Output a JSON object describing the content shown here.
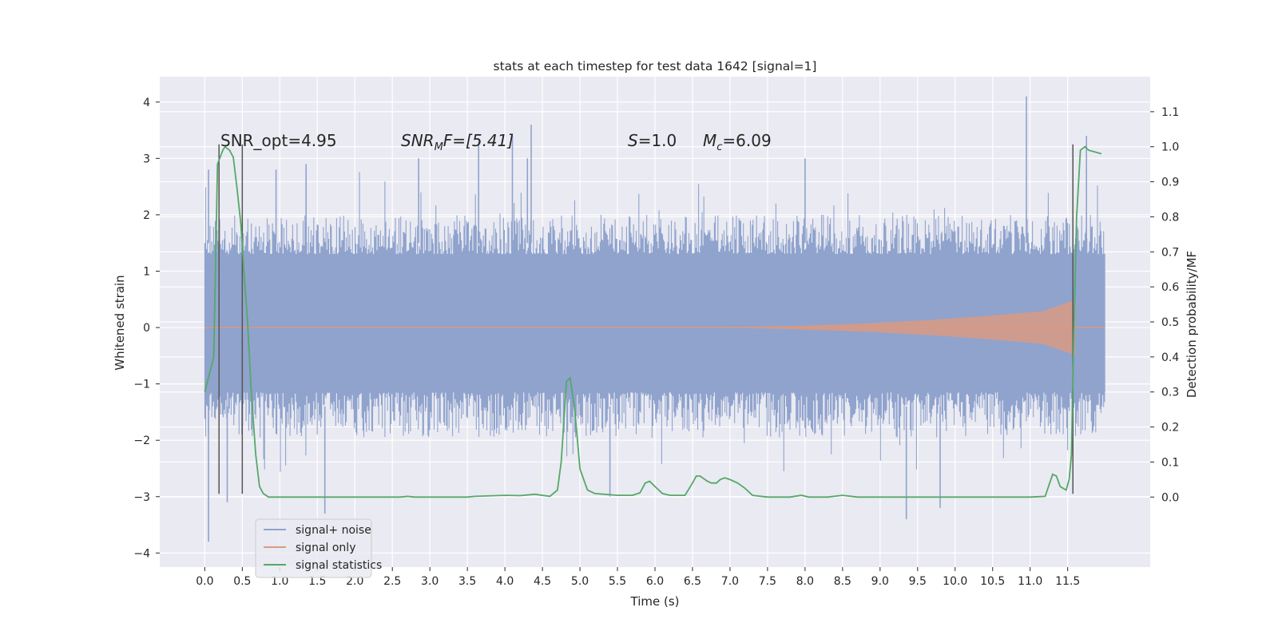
{
  "chart_data": {
    "type": "line",
    "title": "stats at each timestep for test data 1642 [signal=1]",
    "xlabel": "Time (s)",
    "ylabel": "Whitened strain",
    "ylabel_right": "Detection probability/MF",
    "xlim": [
      -0.6,
      12.6
    ],
    "ylim": [
      -4.25,
      4.45
    ],
    "ylim_right": [
      -0.2,
      1.2
    ],
    "x_ticks": [
      "0.0",
      "0.5",
      "1.0",
      "1.5",
      "2.0",
      "2.5",
      "3.0",
      "3.5",
      "4.0",
      "4.5",
      "5.0",
      "5.5",
      "6.0",
      "6.5",
      "7.0",
      "7.5",
      "8.0",
      "8.5",
      "9.0",
      "9.5",
      "10.0",
      "10.5",
      "11.0",
      "11.5"
    ],
    "y_ticks": [
      "4",
      "3",
      "2",
      "1",
      "0",
      "−1",
      "−2",
      "−3",
      "−4"
    ],
    "y_ticks_right": [
      "1.1",
      "1.0",
      "0.9",
      "0.8",
      "0.7",
      "0.6",
      "0.5",
      "0.4",
      "0.3",
      "0.2",
      "0.1",
      "0.0"
    ],
    "grid": true,
    "legend_position": "lower-left",
    "annotations": [
      {
        "id": "snr_opt",
        "text": "SNR_opt=4.95"
      },
      {
        "id": "snr_mf",
        "pre": "SNR",
        "sub": "M",
        "post": "F=[5.41]"
      },
      {
        "id": "s_value",
        "pre": "S",
        "post": "=1.0"
      },
      {
        "id": "mc_value",
        "pre": "M",
        "sub": "c",
        "post": "=6.09"
      }
    ],
    "series": [
      {
        "name": "signal+ noise",
        "color": "#8fa3cd",
        "description_envelope": {
          "t_start": 0.0,
          "t_end": 12.0,
          "typical_upper": 1.7,
          "typical_lower": -1.6,
          "peaks": [
            [
              0.05,
              2.8
            ],
            [
              0.95,
              2.8
            ],
            [
              1.35,
              2.9
            ],
            [
              2.85,
              3.0
            ],
            [
              3.65,
              3.3
            ],
            [
              4.1,
              3.4
            ],
            [
              4.35,
              3.6
            ],
            [
              4.3,
              3.0
            ],
            [
              8.0,
              3.0
            ],
            [
              10.95,
              4.1
            ],
            [
              11.75,
              3.4
            ]
          ],
          "troughs": [
            [
              0.05,
              -3.8
            ],
            [
              0.3,
              -3.1
            ],
            [
              1.6,
              -3.3
            ],
            [
              9.35,
              -3.4
            ],
            [
              9.8,
              -3.2
            ],
            [
              5.4,
              -3.0
            ]
          ]
        }
      },
      {
        "name": "signal only",
        "color": "#d99a84",
        "chirp": {
          "t_start": 6.0,
          "t_end": 11.62,
          "peak_amplitude": 0.5
        }
      },
      {
        "name": "signal statistics",
        "color": "#55a868",
        "axis": "right",
        "x": [
          0.0,
          0.12,
          0.17,
          0.24,
          0.27,
          0.33,
          0.38,
          0.43,
          0.48,
          0.52,
          0.57,
          0.62,
          0.68,
          0.73,
          0.78,
          0.85,
          1.0,
          2.0,
          2.6,
          2.7,
          2.8,
          3.5,
          3.6,
          4.0,
          4.2,
          4.4,
          4.6,
          4.7,
          4.75,
          4.82,
          4.87,
          4.93,
          5.0,
          5.1,
          5.2,
          5.5,
          5.7,
          5.8,
          5.87,
          5.93,
          6.0,
          6.1,
          6.2,
          6.4,
          6.5,
          6.55,
          6.6,
          6.7,
          6.75,
          6.82,
          6.87,
          6.93,
          7.0,
          7.1,
          7.2,
          7.3,
          7.5,
          7.8,
          7.95,
          8.05,
          8.3,
          8.5,
          8.7,
          9.0,
          10.0,
          11.0,
          11.2,
          11.3,
          11.35,
          11.4,
          11.48,
          11.52,
          11.55,
          11.58,
          11.62,
          11.67,
          11.73,
          11.78,
          11.95
        ],
        "y": [
          0.3,
          0.4,
          0.95,
          0.99,
          1.0,
          0.99,
          0.97,
          0.88,
          0.78,
          0.65,
          0.5,
          0.3,
          0.12,
          0.03,
          0.01,
          0.0,
          0.0,
          0.0,
          0.0,
          0.002,
          0.0,
          0.0,
          0.002,
          0.005,
          0.004,
          0.008,
          0.002,
          0.02,
          0.1,
          0.33,
          0.34,
          0.25,
          0.08,
          0.02,
          0.01,
          0.005,
          0.005,
          0.012,
          0.04,
          0.045,
          0.03,
          0.01,
          0.005,
          0.005,
          0.04,
          0.06,
          0.06,
          0.045,
          0.04,
          0.04,
          0.05,
          0.055,
          0.05,
          0.04,
          0.025,
          0.005,
          0.0,
          0.0,
          0.005,
          0.0,
          0.0,
          0.005,
          0.0,
          0.0,
          0.0,
          0.0,
          0.002,
          0.065,
          0.06,
          0.03,
          0.02,
          0.05,
          0.12,
          0.45,
          0.8,
          0.99,
          1.0,
          0.99,
          0.98
        ]
      }
    ],
    "markers": {
      "description": "dark vertical lines",
      "x": [
        0.19,
        0.5,
        11.57
      ],
      "y_top": 3.25,
      "y_bottom": -2.95
    }
  }
}
